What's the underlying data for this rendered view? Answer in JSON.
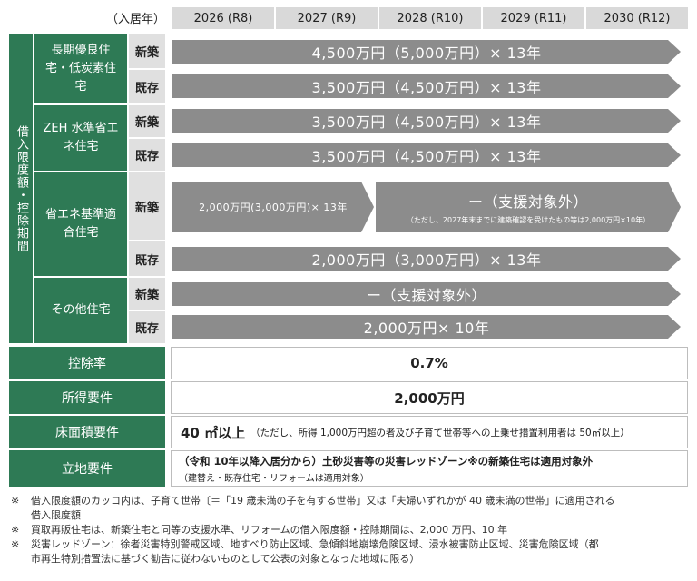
{
  "header": {
    "move_in_label": "（入居年）",
    "years": [
      "2026 (R8)",
      "2027 (R9)",
      "2028 (R10)",
      "2029 (R11)",
      "2030 (R12)"
    ]
  },
  "side_label": "借入限度額・控除期間",
  "categories": {
    "long_term": "長期優良住宅・低炭素住宅",
    "zeh": "ZEH 水準省エネ住宅",
    "energy": "省エネ基準適合住宅",
    "other": "その他住宅"
  },
  "types": {
    "new": "新築",
    "existing": "既存"
  },
  "rows": {
    "long_new": "4,500万円（5,000万円）× 13年",
    "long_existing": "3,500万円（4,500万円）× 13年",
    "zeh_new": "3,500万円（4,500万円）× 13年",
    "zeh_existing": "3,500万円（4,500万円）× 13年",
    "energy_new_a": "2,000万円(3,000万円)× 13年",
    "energy_new_b": "ー（支援対象外）",
    "energy_new_b_note": "（ただし、2027年末までに建築確認を受けたもの等は2,000万円×10年）",
    "energy_existing": "2,000万円（3,000万円）× 13年",
    "other_new": "ー（支援対象外）",
    "other_existing": "2,000万円× 10年"
  },
  "requirements": {
    "rate_label": "控除率",
    "rate_value": "0.7%",
    "income_label": "所得要件",
    "income_value": "2,000万円",
    "floor_label": "床面積要件",
    "floor_value": "40 ㎡以上",
    "floor_note": "（ただし、所得 1,000万円超の者及び子育て世帯等への上乗せ措置利用者は 50㎡以上）",
    "location_label": "立地要件",
    "location_line1": "（令和 10年以降入居分から）土砂災害等の災害レッドゾーン※の新築住宅は適用対象外",
    "location_line2": "（建替え・既存住宅・リフォームは適用対象）"
  },
  "notes": {
    "mark": "※",
    "n1a": "借入限度額のカッコ内は、子育て世帯〔＝「19 歳未満の子を有する世帯」又は「夫婦いずれかが 40 歳未満の世帯」に適用される",
    "n1b": "借入限度額",
    "n2": "買取再販住宅は、新築住宅と同等の支援水準、リフォームの借入限度額・控除期間は、2,000 万円、10 年",
    "n3a": "災害レッドゾーン：徐者災害特別警戒区域、地すべり防止区域、急傾斜地崩壊危険区域、浸水被害防止区域、災害危険区域（都",
    "n3b": "市再生特別措置法に基づく勧告に従わないものとして公表の対象となった地域に限る）"
  },
  "colors": {
    "green": "#2e7a55",
    "arrow": "#8c8c8c",
    "header_gray": "#d9d9d9"
  }
}
